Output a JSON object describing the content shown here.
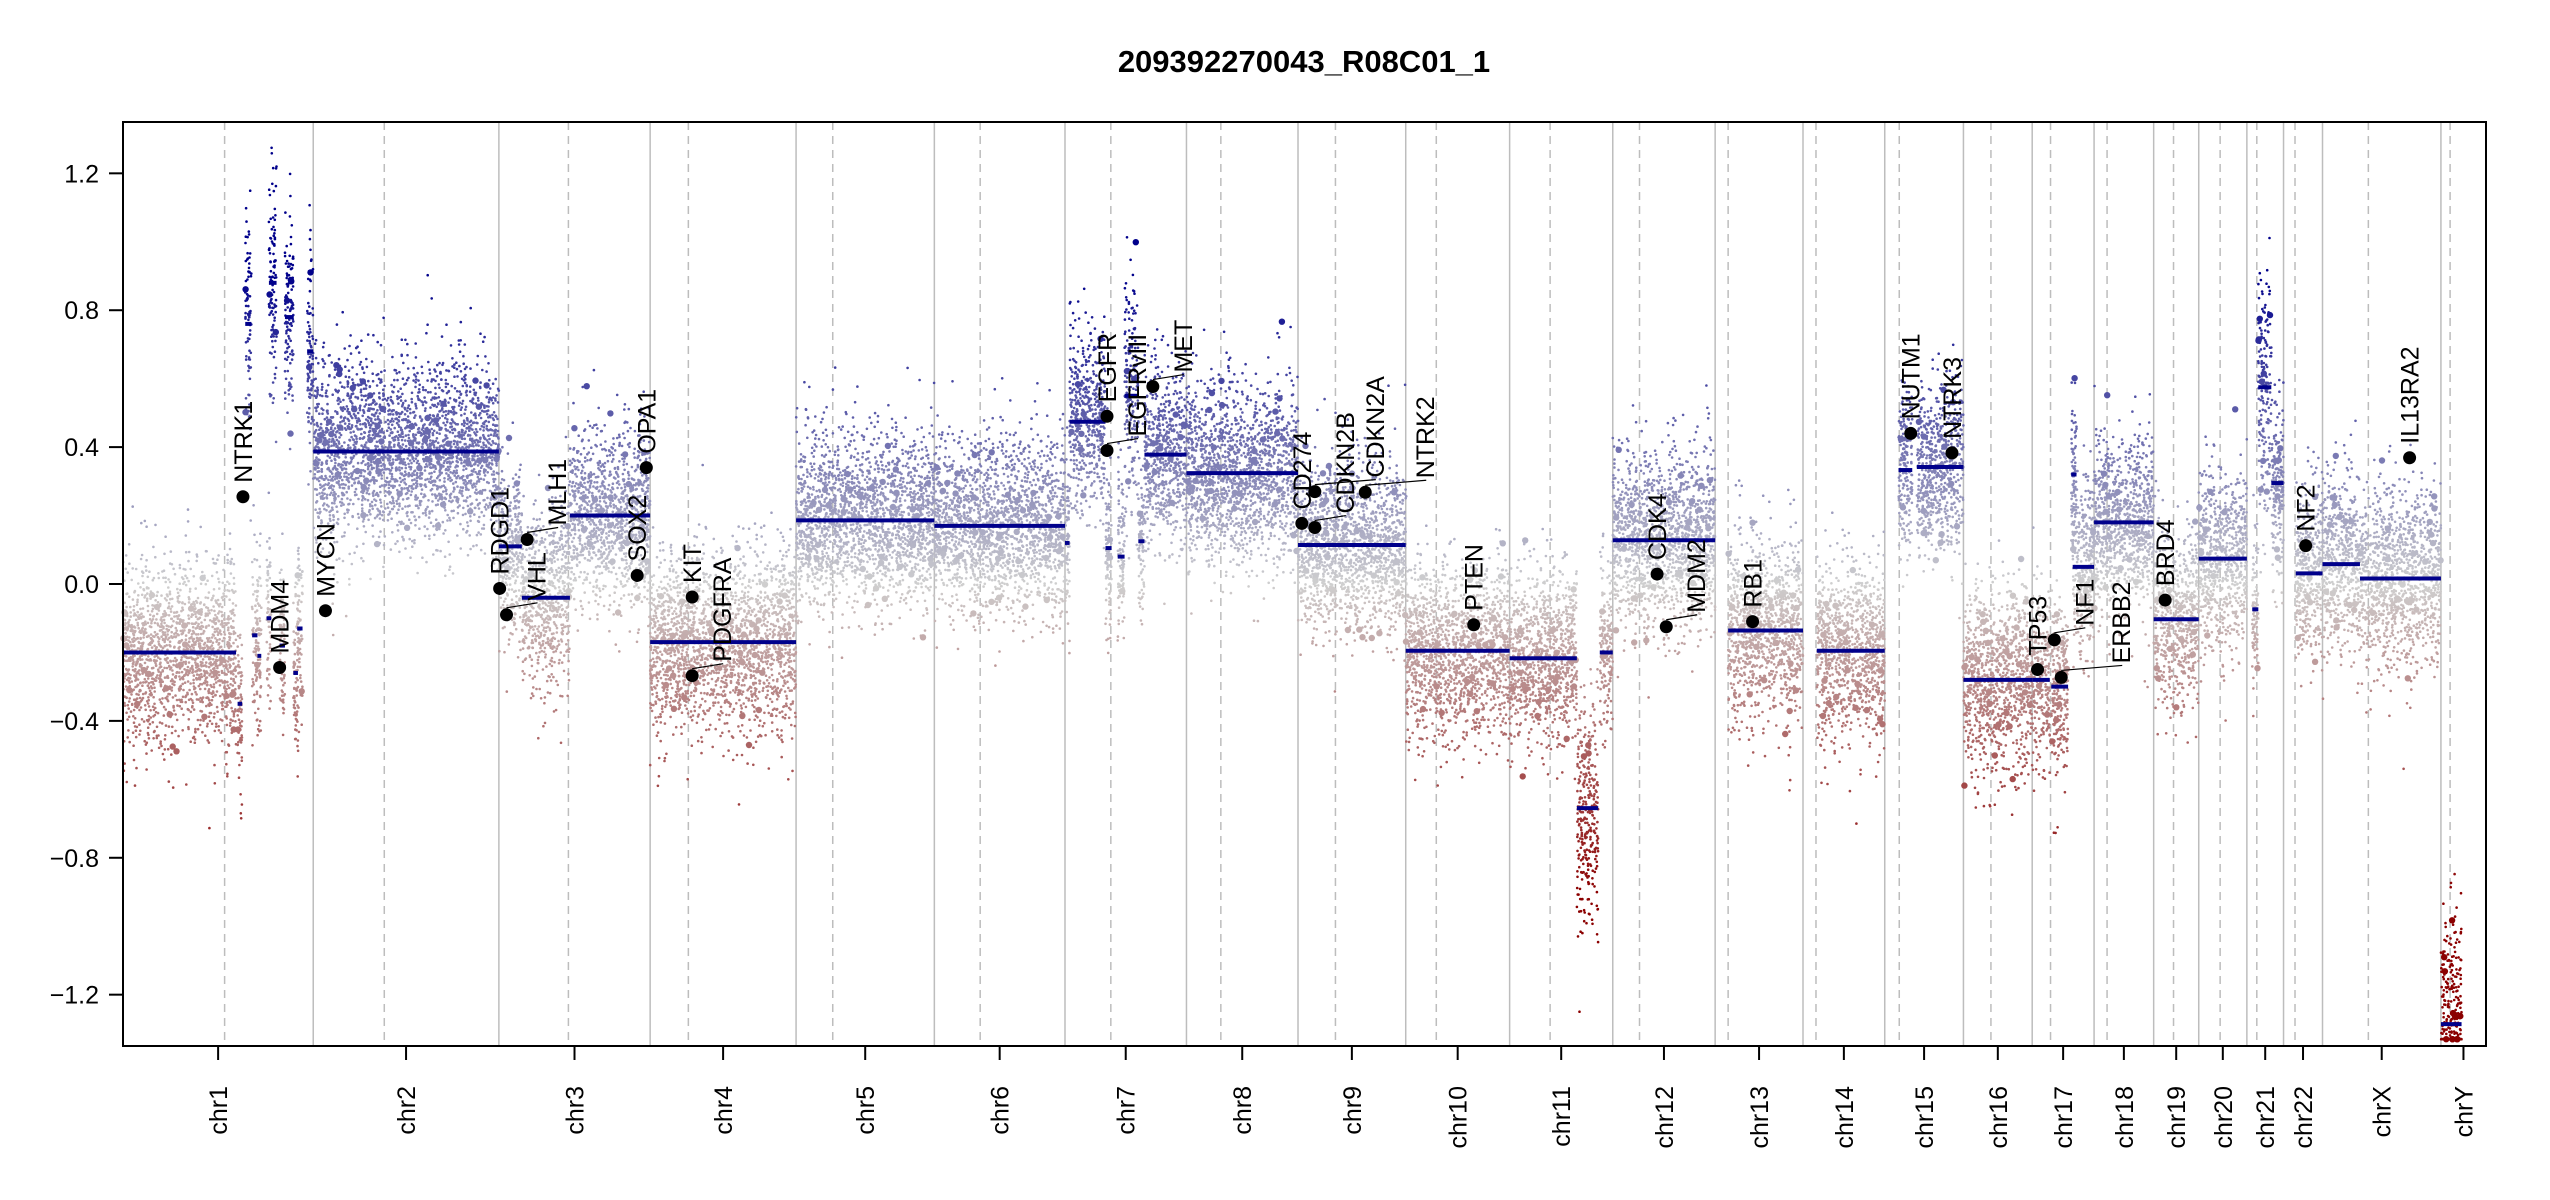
{
  "chart_data": {
    "type": "scatter",
    "title": "209392270043_R08C01_1",
    "xlabel": "",
    "ylabel": "",
    "ylim": [
      -1.35,
      1.35
    ],
    "yticks": [
      -1.2,
      -0.8,
      -0.4,
      0.0,
      0.4,
      0.8,
      1.2
    ],
    "ytick_labels": [
      "−1.2",
      "−0.8",
      "−0.4",
      "0.0",
      "0.4",
      "0.8",
      "1.2"
    ],
    "grid": false,
    "colors": {
      "gain": "#00008b",
      "loss": "#8b0000",
      "neutral": "#cfcfcf",
      "segment": "#00008b",
      "boundary": "#bdbdbd",
      "gene": "#000000"
    },
    "chromosomes": [
      {
        "name": "chr1",
        "length": 249,
        "centromere": 133
      },
      {
        "name": "chr2",
        "length": 243,
        "centromere": 93
      },
      {
        "name": "chr3",
        "length": 198,
        "centromere": 91
      },
      {
        "name": "chr4",
        "length": 191,
        "centromere": 50
      },
      {
        "name": "chr5",
        "length": 181,
        "centromere": 48
      },
      {
        "name": "chr6",
        "length": 171,
        "centromere": 60
      },
      {
        "name": "chr7",
        "length": 159,
        "centromere": 60
      },
      {
        "name": "chr8",
        "length": 146,
        "centromere": 45
      },
      {
        "name": "chr9",
        "length": 141,
        "centromere": 49
      },
      {
        "name": "chr10",
        "length": 136,
        "centromere": 40
      },
      {
        "name": "chr11",
        "length": 135,
        "centromere": 53
      },
      {
        "name": "chr12",
        "length": 134,
        "centromere": 35
      },
      {
        "name": "chr13",
        "length": 115,
        "centromere": 17
      },
      {
        "name": "chr14",
        "length": 107,
        "centromere": 17
      },
      {
        "name": "chr15",
        "length": 103,
        "centromere": 19
      },
      {
        "name": "chr16",
        "length": 90,
        "centromere": 36
      },
      {
        "name": "chr17",
        "length": 81,
        "centromere": 24
      },
      {
        "name": "chr18",
        "length": 78,
        "centromere": 17
      },
      {
        "name": "chr19",
        "length": 59,
        "centromere": 26
      },
      {
        "name": "chr20",
        "length": 63,
        "centromere": 28
      },
      {
        "name": "chr21",
        "length": 48,
        "centromere": 13
      },
      {
        "name": "chr22",
        "length": 51,
        "centromere": 15
      },
      {
        "name": "chrX",
        "length": 155,
        "centromere": 60
      },
      {
        "name": "chrY",
        "length": 59,
        "centromere": 12
      }
    ],
    "segments": [
      {
        "chr": "chr1",
        "start": 0,
        "end": 148,
        "value": -0.2
      },
      {
        "chr": "chr1",
        "start": 150,
        "end": 156,
        "value": -0.35
      },
      {
        "chr": "chr1",
        "start": 160,
        "end": 168,
        "value": 0.76
      },
      {
        "chr": "chr1",
        "start": 169,
        "end": 176,
        "value": -0.15
      },
      {
        "chr": "chr1",
        "start": 176,
        "end": 181,
        "value": -0.21
      },
      {
        "chr": "chr1",
        "start": 188,
        "end": 194,
        "value": -0.1
      },
      {
        "chr": "chr1",
        "start": 191,
        "end": 201,
        "value": 0.88
      },
      {
        "chr": "chr1",
        "start": 205,
        "end": 212,
        "value": -0.18
      },
      {
        "chr": "chr1",
        "start": 212,
        "end": 223,
        "value": 0.78
      },
      {
        "chr": "chr1",
        "start": 223,
        "end": 229,
        "value": -0.26
      },
      {
        "chr": "chr1",
        "start": 228,
        "end": 235,
        "value": -0.13
      },
      {
        "chr": "chr1",
        "start": 241,
        "end": 249,
        "value": 0.68
      },
      {
        "chr": "chr2",
        "start": 0,
        "end": 243,
        "value": 0.387
      },
      {
        "chr": "chr3",
        "start": 0,
        "end": 30,
        "value": 0.11
      },
      {
        "chr": "chr3",
        "start": 30,
        "end": 93,
        "value": -0.04
      },
      {
        "chr": "chr3",
        "start": 93,
        "end": 198,
        "value": 0.2
      },
      {
        "chr": "chr4",
        "start": 0,
        "end": 191,
        "value": -0.17
      },
      {
        "chr": "chr5",
        "start": 0,
        "end": 181,
        "value": 0.186
      },
      {
        "chr": "chr6",
        "start": 0,
        "end": 171,
        "value": 0.17
      },
      {
        "chr": "chr7",
        "start": 0,
        "end": 6,
        "value": 0.12
      },
      {
        "chr": "chr7",
        "start": 6,
        "end": 53,
        "value": 0.474
      },
      {
        "chr": "chr7",
        "start": 53,
        "end": 61,
        "value": 0.105
      },
      {
        "chr": "chr7",
        "start": 69,
        "end": 78,
        "value": 0.08
      },
      {
        "chr": "chr7",
        "start": 78,
        "end": 96,
        "value": 0.55
      },
      {
        "chr": "chr7",
        "start": 96,
        "end": 104,
        "value": 0.125
      },
      {
        "chr": "chr7",
        "start": 104,
        "end": 159,
        "value": 0.378
      },
      {
        "chr": "chr8",
        "start": 0,
        "end": 146,
        "value": 0.324
      },
      {
        "chr": "chr9",
        "start": 0,
        "end": 141,
        "value": 0.114
      },
      {
        "chr": "chr10",
        "start": 0,
        "end": 136,
        "value": -0.195
      },
      {
        "chr": "chr11",
        "start": 0,
        "end": 88,
        "value": -0.217
      },
      {
        "chr": "chr11",
        "start": 88,
        "end": 116,
        "value": -0.655
      },
      {
        "chr": "chr11",
        "start": 118,
        "end": 135,
        "value": -0.2
      },
      {
        "chr": "chr12",
        "start": 0,
        "end": 134,
        "value": 0.128
      },
      {
        "chr": "chr13",
        "start": 17,
        "end": 115,
        "value": -0.136
      },
      {
        "chr": "chr14",
        "start": 18,
        "end": 107,
        "value": -0.195
      },
      {
        "chr": "chr15",
        "start": 18,
        "end": 36,
        "value": 0.333
      },
      {
        "chr": "chr15",
        "start": 42,
        "end": 103,
        "value": 0.342
      },
      {
        "chr": "chr16",
        "start": 0,
        "end": 90,
        "value": -0.28
      },
      {
        "chr": "chr17",
        "start": 0,
        "end": 23,
        "value": -0.28
      },
      {
        "chr": "chr17",
        "start": 25,
        "end": 47,
        "value": -0.3
      },
      {
        "chr": "chr17",
        "start": 51,
        "end": 58,
        "value": 0.32
      },
      {
        "chr": "chr17",
        "start": 53,
        "end": 81,
        "value": 0.05
      },
      {
        "chr": "chr18",
        "start": 0,
        "end": 78,
        "value": 0.18
      },
      {
        "chr": "chr19",
        "start": 0,
        "end": 59,
        "value": -0.103
      },
      {
        "chr": "chr20",
        "start": 0,
        "end": 63,
        "value": 0.074
      },
      {
        "chr": "chr21",
        "start": 7,
        "end": 15,
        "value": -0.074
      },
      {
        "chr": "chr21",
        "start": 15,
        "end": 32,
        "value": 0.575
      },
      {
        "chr": "chr21",
        "start": 32,
        "end": 48,
        "value": 0.295
      },
      {
        "chr": "chr22",
        "start": 16,
        "end": 51,
        "value": 0.031
      },
      {
        "chr": "chrX",
        "start": 0,
        "end": 49,
        "value": 0.058
      },
      {
        "chr": "chrX",
        "start": 49,
        "end": 155,
        "value": 0.016
      },
      {
        "chr": "chrY",
        "start": 0,
        "end": 27,
        "value": -1.286
      }
    ],
    "genes": [
      {
        "name": "NTRK1",
        "chr": "chr1",
        "pos": 157,
        "value": 0.255
      },
      {
        "name": "MDM4",
        "chr": "chr1",
        "pos": 205,
        "value": -0.244
      },
      {
        "name": "MYCN",
        "chr": "chr2",
        "pos": 16,
        "value": -0.078
      },
      {
        "name": "RDGD1",
        "chr": "chr3",
        "pos": 1,
        "value": -0.013
      },
      {
        "name": "VHL",
        "chr": "chr3",
        "pos": 10,
        "value": -0.09
      },
      {
        "name": "MLH1",
        "chr": "chr3",
        "pos": 37,
        "value": 0.13
      },
      {
        "name": "SOX2",
        "chr": "chr3",
        "pos": 181,
        "value": 0.025
      },
      {
        "name": "OPA1",
        "chr": "chr3",
        "pos": 193,
        "value": 0.34
      },
      {
        "name": "KIT",
        "chr": "chr4",
        "pos": 55,
        "value": -0.038
      },
      {
        "name": "PDGFRA",
        "chr": "chr4",
        "pos": 55,
        "value": -0.268
      },
      {
        "name": "EGFR",
        "chr": "chr7",
        "pos": 55,
        "value": 0.49
      },
      {
        "name": "EGFRvIII",
        "chr": "chr7",
        "pos": 55,
        "value": 0.39
      },
      {
        "name": "MET",
        "chr": "chr7",
        "pos": 115,
        "value": 0.577
      },
      {
        "name": "CD274",
        "chr": "chr9",
        "pos": 5,
        "value": 0.177
      },
      {
        "name": "CDKN2B",
        "chr": "chr9",
        "pos": 22,
        "value": 0.165
      },
      {
        "name": "CDKN2A",
        "chr": "chr9",
        "pos": 22,
        "value": 0.27
      },
      {
        "name": "NTRK2",
        "chr": "chr9",
        "pos": 88,
        "value": 0.268
      },
      {
        "name": "PTEN",
        "chr": "chr10",
        "pos": 89,
        "value": -0.119
      },
      {
        "name": "CDK4",
        "chr": "chr12",
        "pos": 58,
        "value": 0.029
      },
      {
        "name": "MDM2",
        "chr": "chr12",
        "pos": 70,
        "value": -0.125
      },
      {
        "name": "RB1",
        "chr": "chr13",
        "pos": 49,
        "value": -0.11
      },
      {
        "name": "NUTM1",
        "chr": "chr15",
        "pos": 34,
        "value": 0.44
      },
      {
        "name": "NTRK3",
        "chr": "chr15",
        "pos": 88,
        "value": 0.383
      },
      {
        "name": "TP53",
        "chr": "chr17",
        "pos": 7,
        "value": -0.25
      },
      {
        "name": "NF1",
        "chr": "chr17",
        "pos": 29,
        "value": -0.163
      },
      {
        "name": "ERBB2",
        "chr": "chr17",
        "pos": 38,
        "value": -0.273
      },
      {
        "name": "BRD4",
        "chr": "chr19",
        "pos": 15,
        "value": -0.047
      },
      {
        "name": "NF2",
        "chr": "chr22",
        "pos": 29,
        "value": 0.112
      },
      {
        "name": "IL13RA2",
        "chr": "chrX",
        "pos": 114,
        "value": 0.369
      }
    ]
  }
}
